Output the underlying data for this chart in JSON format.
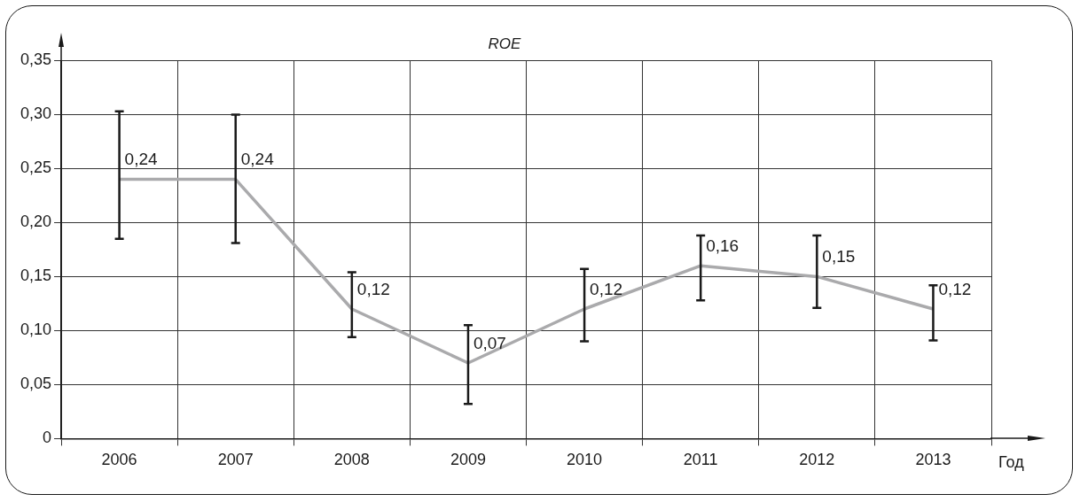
{
  "chart_data": {
    "type": "line",
    "title": "ROE",
    "xlabel": "Год",
    "categories": [
      "2006",
      "2007",
      "2008",
      "2009",
      "2010",
      "2011",
      "2012",
      "2013"
    ],
    "series": [
      {
        "color": "#aaaaac",
        "values": [
          0.24,
          0.24,
          0.12,
          0.07,
          0.12,
          0.16,
          0.15,
          0.12
        ],
        "errors": [
          [
            0.185,
            0.303
          ],
          [
            0.181,
            0.3
          ],
          [
            0.094,
            0.154
          ],
          [
            0.032,
            0.105
          ],
          [
            0.09,
            0.157
          ],
          [
            0.128,
            0.188
          ],
          [
            0.121,
            0.188
          ],
          [
            0.091,
            0.142
          ]
        ],
        "value_labels": [
          "0,24",
          "0,24",
          "0,12",
          "0,07",
          "0,12",
          "0,16",
          "0,15",
          "0,12"
        ]
      }
    ],
    "ylim": [
      0,
      0.35
    ],
    "yticks": [
      0,
      {
        "value": 0.05,
        "label": "0,05"
      },
      {
        "value": 0.1,
        "label": "0,10"
      },
      {
        "value": 0.15,
        "label": "0,15"
      },
      {
        "value": 0.2,
        "label": "0,20"
      },
      {
        "value": 0.25,
        "label": "0,25"
      },
      {
        "value": 0.3,
        "label": "0,30"
      },
      {
        "value": 0.35,
        "label": "0,35"
      }
    ],
    "grid": true,
    "legend": false,
    "marker": "none",
    "line_style": "solid"
  }
}
